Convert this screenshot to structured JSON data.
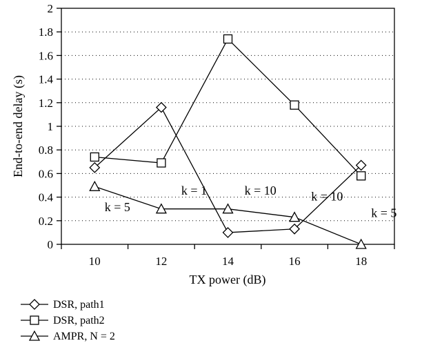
{
  "chart_data": {
    "type": "line",
    "title": "",
    "xlabel": "TX power (dB)",
    "ylabel": "End-to-end delay (s)",
    "x": [
      10,
      12,
      14,
      16,
      18
    ],
    "xlim": [
      9,
      19
    ],
    "ylim": [
      0,
      2
    ],
    "xticks": [
      "10",
      "12",
      "14",
      "16",
      "18"
    ],
    "yticks": [
      "0",
      "0.2",
      "0.4",
      "0.6",
      "0.8",
      "1",
      "1.2",
      "1.4",
      "1.6",
      "1.8",
      "2"
    ],
    "grid": "horizontal dotted",
    "legend_position": "bottom-left, below chart",
    "series": [
      {
        "name": "DSR, path1",
        "marker": "diamond",
        "values": [
          0.65,
          1.16,
          0.1,
          0.13,
          0.67
        ]
      },
      {
        "name": "DSR, path2",
        "marker": "square",
        "values": [
          0.74,
          0.69,
          1.74,
          1.18,
          0.58
        ]
      },
      {
        "name": "AMPR, N = 2",
        "marker": "triangle",
        "values": [
          0.49,
          0.3,
          0.3,
          0.23,
          0.0
        ]
      }
    ],
    "annotations": [
      {
        "text": "k = 5",
        "x": 10.3,
        "y": 0.28
      },
      {
        "text": "k = 1",
        "x": 12.6,
        "y": 0.42
      },
      {
        "text": "k = 10",
        "x": 14.5,
        "y": 0.42
      },
      {
        "text": "k = 10",
        "x": 16.5,
        "y": 0.37
      },
      {
        "text": "k = 5",
        "x": 18.3,
        "y": 0.23
      }
    ]
  }
}
